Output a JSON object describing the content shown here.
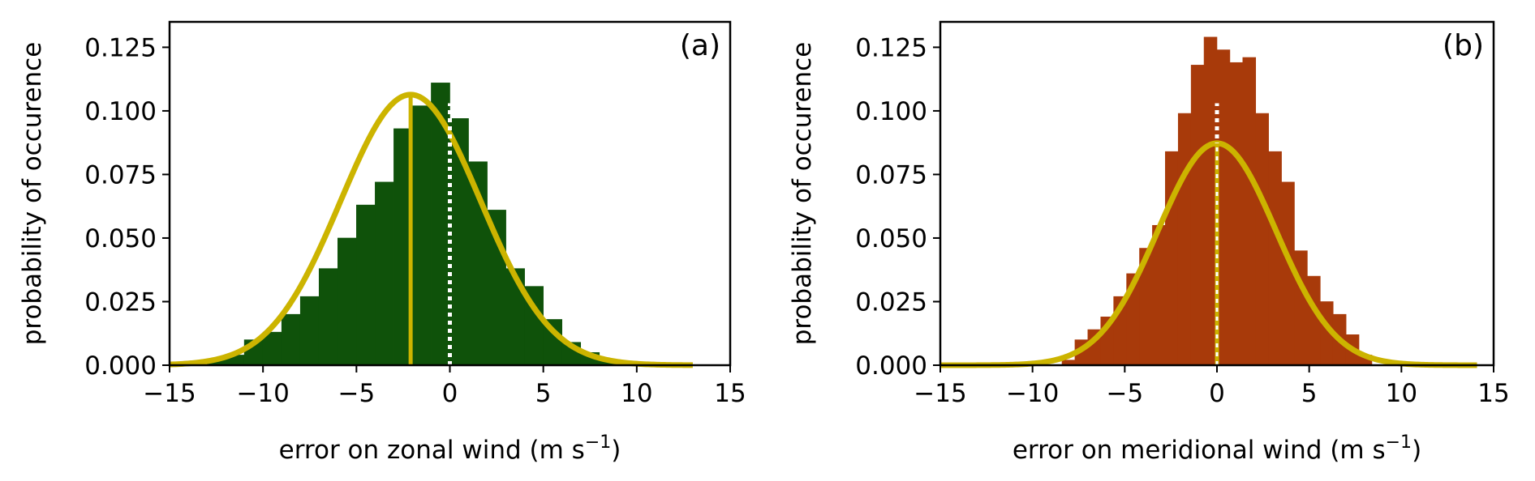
{
  "chart_data": [
    {
      "type": "bar",
      "panel_label": "(a)",
      "xlabel": "error on zonal wind (m s",
      "xlabel_sup": "−1",
      "xlabel_close": ")",
      "ylabel": "probability of occurence",
      "xlim": [
        -15,
        15
      ],
      "ylim": [
        0,
        0.135
      ],
      "xticks": [
        -15,
        -10,
        -5,
        0,
        5,
        10,
        15
      ],
      "xtick_labels": [
        "−15",
        "−10",
        "−5",
        "0",
        "5",
        "10",
        "15"
      ],
      "yticks": [
        0,
        0.025,
        0.05,
        0.075,
        0.1,
        0.125
      ],
      "ytick_labels": [
        "0.000",
        "0.025",
        "0.050",
        "0.075",
        "0.100",
        "0.125"
      ],
      "bar_color": "#0f520a",
      "fit_color": "#ccb400",
      "bin_width": 1,
      "bins": [
        {
          "x": -13,
          "y": 0.002
        },
        {
          "x": -12,
          "y": 0.004
        },
        {
          "x": -11,
          "y": 0.01
        },
        {
          "x": -10,
          "y": 0.013
        },
        {
          "x": -9,
          "y": 0.02
        },
        {
          "x": -8,
          "y": 0.027
        },
        {
          "x": -7,
          "y": 0.038
        },
        {
          "x": -6,
          "y": 0.05
        },
        {
          "x": -5,
          "y": 0.063
        },
        {
          "x": -4,
          "y": 0.072
        },
        {
          "x": -3,
          "y": 0.093
        },
        {
          "x": -2,
          "y": 0.102
        },
        {
          "x": -1,
          "y": 0.111
        },
        {
          "x": 0,
          "y": 0.097
        },
        {
          "x": 1,
          "y": 0.08
        },
        {
          "x": 2,
          "y": 0.061
        },
        {
          "x": 3,
          "y": 0.038
        },
        {
          "x": 4,
          "y": 0.031
        },
        {
          "x": 5,
          "y": 0.018
        },
        {
          "x": 6,
          "y": 0.009
        },
        {
          "x": 7,
          "y": 0.005
        },
        {
          "x": 8,
          "y": 0.002
        },
        {
          "x": 9,
          "y": 0.001
        }
      ],
      "fit": {
        "mean": -2.1,
        "sigma": 3.75
      },
      "mean_line_x": -2.1,
      "zero_line_x": 0
    },
    {
      "type": "bar",
      "panel_label": "(b)",
      "xlabel": "error on meridional wind (m s",
      "xlabel_sup": "−1",
      "xlabel_close": ")",
      "ylabel": "probability of occurence",
      "xlim": [
        -15,
        15
      ],
      "ylim": [
        0,
        0.135
      ],
      "xticks": [
        -15,
        -10,
        -5,
        0,
        5,
        10,
        15
      ],
      "xtick_labels": [
        "−15",
        "−10",
        "−5",
        "0",
        "5",
        "10",
        "15"
      ],
      "yticks": [
        0,
        0.025,
        0.05,
        0.075,
        0.1,
        0.125
      ],
      "ytick_labels": [
        "0.000",
        "0.025",
        "0.050",
        "0.075",
        "0.100",
        "0.125"
      ],
      "bar_color": "#a83a0a",
      "fit_color": "#ccb400",
      "bin_width": 0.7,
      "bins": [
        {
          "x": -8.4,
          "y": 0.002
        },
        {
          "x": -7.7,
          "y": 0.01
        },
        {
          "x": -7.0,
          "y": 0.014
        },
        {
          "x": -6.3,
          "y": 0.019
        },
        {
          "x": -5.6,
          "y": 0.027
        },
        {
          "x": -4.9,
          "y": 0.036
        },
        {
          "x": -4.2,
          "y": 0.046
        },
        {
          "x": -3.5,
          "y": 0.055
        },
        {
          "x": -2.8,
          "y": 0.084
        },
        {
          "x": -2.1,
          "y": 0.099
        },
        {
          "x": -1.4,
          "y": 0.118
        },
        {
          "x": -0.7,
          "y": 0.129
        },
        {
          "x": 0.0,
          "y": 0.124
        },
        {
          "x": 0.7,
          "y": 0.119
        },
        {
          "x": 1.4,
          "y": 0.121
        },
        {
          "x": 2.1,
          "y": 0.099
        },
        {
          "x": 2.8,
          "y": 0.084
        },
        {
          "x": 3.5,
          "y": 0.072
        },
        {
          "x": 4.2,
          "y": 0.045
        },
        {
          "x": 4.9,
          "y": 0.035
        },
        {
          "x": 5.6,
          "y": 0.025
        },
        {
          "x": 6.3,
          "y": 0.02
        },
        {
          "x": 7.0,
          "y": 0.012
        },
        {
          "x": 7.7,
          "y": 0.004
        }
      ],
      "fit": {
        "mean": 0.0,
        "sigma": 3.2
      },
      "mean_line_x": 0,
      "zero_line_x": 0
    }
  ]
}
